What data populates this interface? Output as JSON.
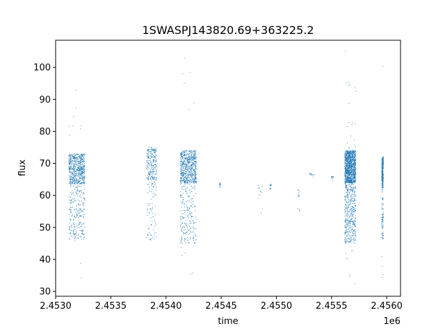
{
  "chart_data": {
    "type": "scatter",
    "title": "1SWASPJ143820.69+363225.2",
    "xlabel": "time",
    "ylabel": "flux",
    "x_offset_label": "1e6",
    "xlim": [
      2453000,
      2456125
    ],
    "ylim": [
      28.5,
      108.5
    ],
    "xticks": [
      2453000,
      2453500,
      2454000,
      2454500,
      2455000,
      2455500,
      2456000
    ],
    "xtick_labels": [
      "2.4530",
      "2.4535",
      "2.4540",
      "2.4545",
      "2.4550",
      "2.4555",
      "2.4560"
    ],
    "yticks": [
      30,
      40,
      50,
      60,
      70,
      80,
      90,
      100
    ],
    "ytick_labels": [
      "30",
      "40",
      "50",
      "60",
      "70",
      "80",
      "90",
      "100"
    ],
    "grid": false,
    "marker_color": "#1f77b4",
    "observing_seasons": [
      {
        "x_start": 2453120,
        "x_end": 2453265,
        "flux_low": 46,
        "flux_high": 73,
        "flux_min": 34,
        "flux_max": 95,
        "density": "high"
      },
      {
        "x_start": 2453825,
        "x_end": 2453915,
        "flux_low": 46,
        "flux_high": 75,
        "flux_min": 46,
        "flux_max": 76,
        "density": "medium"
      },
      {
        "x_start": 2454130,
        "x_end": 2454275,
        "flux_low": 45,
        "flux_high": 74,
        "flux_min": 32,
        "flux_max": 104,
        "density": "high"
      },
      {
        "x_start": 2454485,
        "x_end": 2454495,
        "flux_low": 62,
        "flux_high": 64,
        "flux_min": 62,
        "flux_max": 64,
        "density": "sparse"
      },
      {
        "x_start": 2454830,
        "x_end": 2454880,
        "flux_low": 50,
        "flux_high": 64,
        "flux_min": 50,
        "flux_max": 64,
        "density": "sparse"
      },
      {
        "x_start": 2454940,
        "x_end": 2454955,
        "flux_low": 62,
        "flux_high": 63.5,
        "flux_min": 62,
        "flux_max": 63.5,
        "density": "sparse"
      },
      {
        "x_start": 2455190,
        "x_end": 2455210,
        "flux_low": 55,
        "flux_high": 62,
        "flux_min": 55,
        "flux_max": 62,
        "density": "sparse"
      },
      {
        "x_start": 2455300,
        "x_end": 2455350,
        "flux_low": 65,
        "flux_high": 67,
        "flux_min": 65,
        "flux_max": 67,
        "density": "sparse"
      },
      {
        "x_start": 2455500,
        "x_end": 2455520,
        "flux_low": 64,
        "flux_high": 66,
        "flux_min": 38,
        "flux_max": 66,
        "density": "sparse"
      },
      {
        "x_start": 2455620,
        "x_end": 2455720,
        "flux_low": 45,
        "flux_high": 74,
        "flux_min": 32,
        "flux_max": 105,
        "density": "very-high"
      },
      {
        "x_start": 2455955,
        "x_end": 2455970,
        "flux_low": 46,
        "flux_high": 72,
        "flux_min": 33,
        "flux_max": 103,
        "density": "medium"
      }
    ]
  }
}
